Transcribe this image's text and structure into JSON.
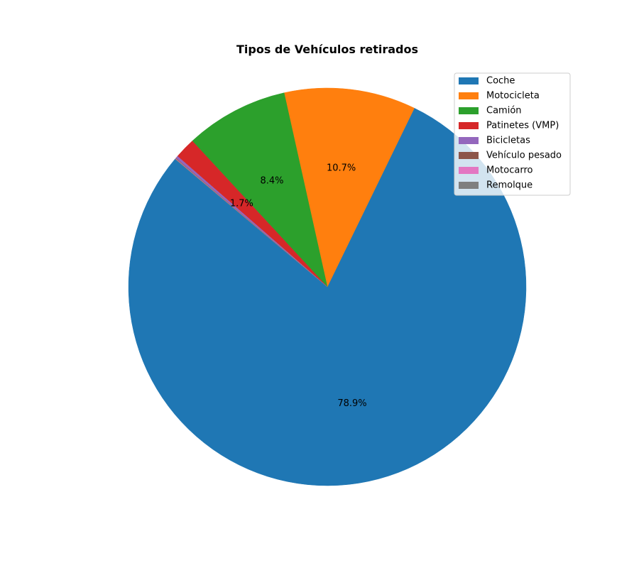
{
  "chart_data": {
    "type": "pie",
    "title": "Tipos de Vehículos retirados",
    "labels": [
      "Coche",
      "Motocicleta",
      "Camión",
      "Patinetes (VMP)",
      "Bicicletas",
      "Vehículo pesado",
      "Motocarro",
      "Remolque"
    ],
    "values": [
      78.9,
      10.7,
      8.4,
      1.7,
      0.2,
      0.04,
      0.03,
      0.03
    ],
    "value_labels": [
      "78.9%",
      "10.7%",
      "8.4%",
      "1.7%",
      "",
      "",
      "",
      ""
    ],
    "colors": [
      "#1f77b4",
      "#ff7f0e",
      "#2ca02c",
      "#d62728",
      "#9467bd",
      "#8c564b",
      "#e377c2",
      "#7f7f7f"
    ],
    "start_angle_deg": 140,
    "direction": "counterclockwise",
    "legend_position": "top-right"
  }
}
